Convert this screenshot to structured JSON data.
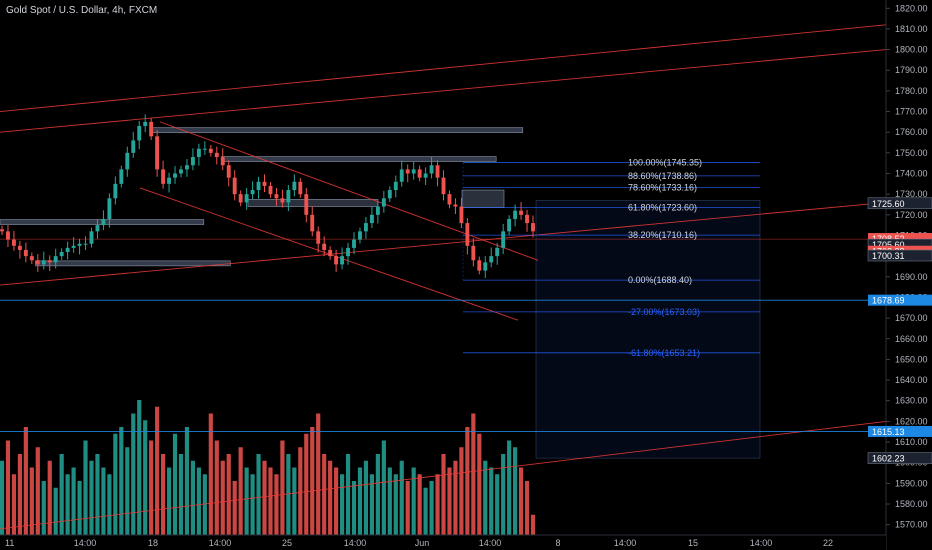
{
  "header": {
    "title": "Gold Spot / U.S. Dollar, 4h, FXCM"
  },
  "colors": {
    "background": "#000000",
    "up": "#26a69a",
    "down": "#ef5350",
    "trendline": "#e53935",
    "zone": "#5d6b86",
    "fib_line": "#2962ff",
    "blue_tag": "#1e88e5",
    "dark_tag": "#1c2230",
    "grid_axis_text": "#b2b5be"
  },
  "chart_data": {
    "type": "candlestick",
    "title": "Gold Spot / U.S. Dollar, 4h, FXCM",
    "ylim": [
      1565,
      1824
    ],
    "y_ticks": [
      1570,
      1580,
      1590,
      1600,
      1610,
      1620,
      1630,
      1640,
      1650,
      1660,
      1670,
      1680,
      1690,
      1700,
      1710,
      1720,
      1730,
      1740,
      1750,
      1760,
      1770,
      1780,
      1790,
      1800,
      1810,
      1820
    ],
    "x_ticks": [
      "11",
      "14:00",
      "18",
      "14:00",
      "25",
      "14:00",
      "Jun",
      "14:00",
      "8",
      "14:00",
      "15",
      "14:00",
      "22"
    ],
    "price_path": [
      1712,
      1708,
      1705,
      1703,
      1700,
      1698,
      1696,
      1698,
      1697,
      1700,
      1702,
      1704,
      1705,
      1706,
      1706,
      1712,
      1715,
      1718,
      1728,
      1735,
      1742,
      1750,
      1756,
      1763,
      1765,
      1758,
      1742,
      1735,
      1738,
      1740,
      1742,
      1744,
      1748,
      1752,
      1752,
      1750,
      1748,
      1744,
      1738,
      1730,
      1726,
      1730,
      1732,
      1736,
      1734,
      1730,
      1728,
      1726,
      1732,
      1736,
      1730,
      1720,
      1712,
      1706,
      1703,
      1700,
      1696,
      1700,
      1704,
      1708,
      1712,
      1716,
      1720,
      1724,
      1728,
      1732,
      1736,
      1742,
      1740,
      1742,
      1738,
      1740,
      1744,
      1738,
      1730,
      1725,
      1724,
      1716,
      1705,
      1698,
      1693,
      1697,
      1700,
      1704,
      1712,
      1718,
      1722,
      1720,
      1716,
      1712
    ],
    "volume_path": [
      0.55,
      0.7,
      0.45,
      0.6,
      0.8,
      0.5,
      0.65,
      0.4,
      0.55,
      0.35,
      0.6,
      0.45,
      0.5,
      0.4,
      0.7,
      0.55,
      0.6,
      0.5,
      0.45,
      0.75,
      0.8,
      0.65,
      0.9,
      1.0,
      0.85,
      0.7,
      0.95,
      0.6,
      0.5,
      0.75,
      0.6,
      0.8,
      0.55,
      0.5,
      0.45,
      0.9,
      0.7,
      0.55,
      0.6,
      0.4,
      0.65,
      0.5,
      0.45,
      0.6,
      0.55,
      0.5,
      0.45,
      0.7,
      0.6,
      0.5,
      0.65,
      0.75,
      0.8,
      0.9,
      0.6,
      0.55,
      0.5,
      0.45,
      0.6,
      0.4,
      0.5,
      0.55,
      0.45,
      0.6,
      0.7,
      0.5,
      0.45,
      0.55,
      0.4,
      0.5,
      0.45,
      0.35,
      0.4,
      0.45,
      0.6,
      0.5,
      0.55,
      0.65,
      0.8,
      0.9,
      0.75,
      0.55,
      0.5,
      0.45,
      0.6,
      0.7,
      0.65,
      0.5,
      0.4,
      0.15
    ],
    "fib_levels": [
      {
        "label": "100.00%(1745.35)",
        "value": 1745.35
      },
      {
        "label": "88.60%(1738.86)",
        "value": 1738.86
      },
      {
        "label": "78.60%(1733.16)",
        "value": 1733.16
      },
      {
        "label": "61.80%(1723.60)",
        "value": 1723.6
      },
      {
        "label": "38.20%(1710.16)",
        "value": 1710.16
      },
      {
        "label": "0.00%(1688.40)",
        "value": 1688.4
      },
      {
        "label": "-27.00%(1673.03)",
        "value": 1673.03
      },
      {
        "label": "-61.80%(1653.21)",
        "value": 1653.21
      }
    ],
    "zones": [
      {
        "level": 1761.0,
        "from": 0.17,
        "to": 0.59
      },
      {
        "level": 1747.0,
        "from": 0.25,
        "to": 0.56
      },
      {
        "level": 1716.5,
        "from": 0.0,
        "to": 0.23
      },
      {
        "level": 1696.5,
        "from": 0.04,
        "to": 0.26
      }
    ],
    "horizontal_lines": [
      {
        "value": 1678.69,
        "color": "#1e88e5"
      },
      {
        "value": 1615.13,
        "color": "#1e88e5"
      },
      {
        "value": 1708.2,
        "color": "#e53935"
      }
    ],
    "price_tags": [
      {
        "text": "1725.60",
        "value": 1725.6,
        "style": "dark"
      },
      {
        "text": "1708.52",
        "value": 1708.52,
        "style": "red"
      },
      {
        "text": "1705.60",
        "value": 1705.6,
        "style": "dark"
      },
      {
        "text": "1702.38",
        "value": 1702.38,
        "style": "red"
      },
      {
        "text": "1700.31",
        "value": 1700.31,
        "style": "dark"
      },
      {
        "text": "1678.69",
        "value": 1678.69,
        "style": "blue"
      },
      {
        "text": "1615.13",
        "value": 1615.13,
        "style": "blue"
      },
      {
        "text": "1602.23",
        "value": 1602.23,
        "style": "dark"
      }
    ],
    "short_position": {
      "entry": 1725.6,
      "stop": 1725.6,
      "target": 1602.23
    }
  }
}
